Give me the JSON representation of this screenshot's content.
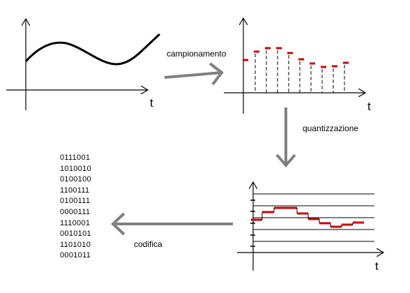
{
  "axis_label": "t",
  "steps": {
    "sampling": "campionamento",
    "quantization": "quantizzazione",
    "encoding": "codifica"
  },
  "codes": [
    "0111001",
    "1010010",
    "0100100",
    "1100111",
    "0100111",
    "0000111",
    "1110001",
    "0010101",
    "1101010",
    "0001011"
  ],
  "colors": {
    "signal": "#000000",
    "sample": "#cc0000",
    "arrow": "#808080",
    "axis": "#000000"
  }
}
